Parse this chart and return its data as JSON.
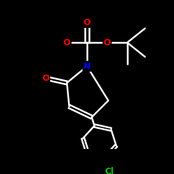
{
  "background_color": "#000000",
  "line_color": "#ffffff",
  "atom_colors": {
    "O": "#ff0000",
    "N": "#0000ff",
    "Cl": "#00cc00",
    "C": "#ffffff"
  },
  "lw": 1.8
}
